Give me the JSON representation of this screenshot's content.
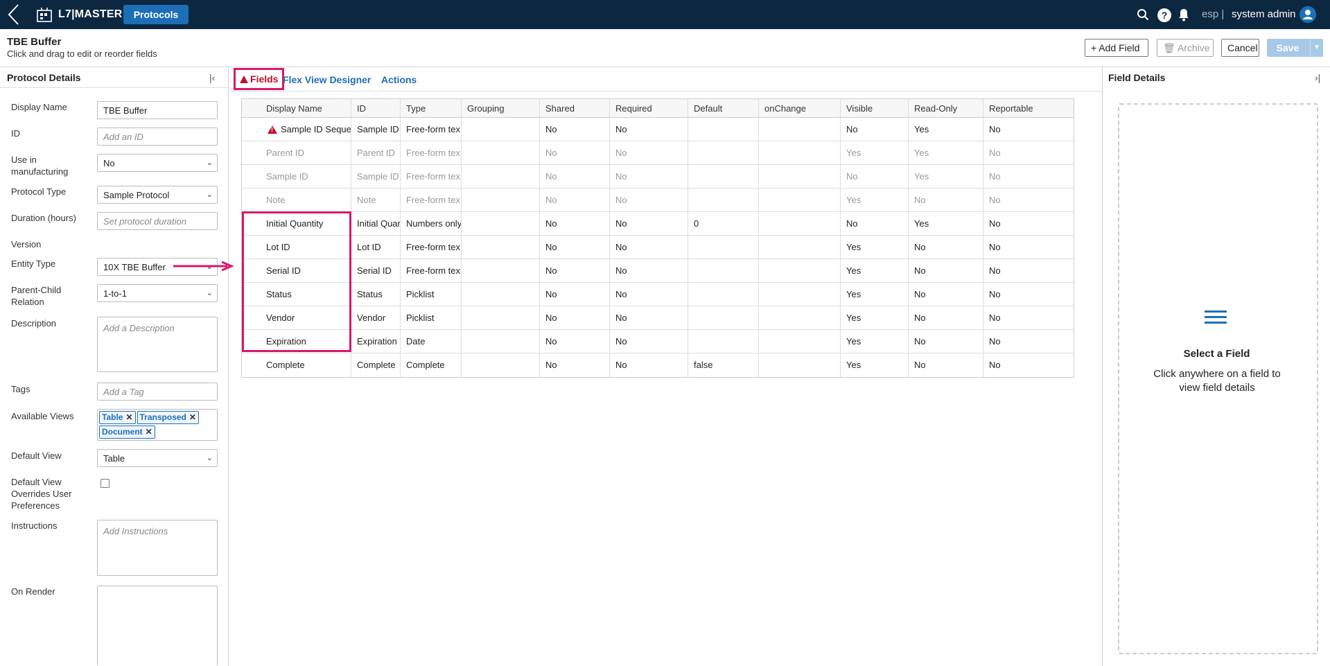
{
  "topbar": {
    "brand": "L7|MASTER",
    "nav_tab": "Protocols",
    "help_glyph": "?",
    "lang": "esp |",
    "user": "system admin",
    "icons": [
      "back-chevron-icon",
      "app-logo-icon",
      "search-icon",
      "help-icon",
      "bell-icon",
      "user-avatar-icon"
    ]
  },
  "header": {
    "title": "TBE Buffer",
    "subtitle": "Click and drag to edit or reorder fields",
    "add_field": "+  Add Field",
    "archive": "Archive",
    "cancel": "Cancel",
    "save": "Save"
  },
  "left_panel": {
    "title": "Protocol Details",
    "fields": {
      "display_name": {
        "label": "Display Name",
        "value": "TBE Buffer"
      },
      "id": {
        "label": "ID",
        "placeholder": "Add an ID"
      },
      "use_in_manufacturing": {
        "label": "Use in manufacturing",
        "value": "No"
      },
      "protocol_type": {
        "label": "Protocol Type",
        "value": "Sample Protocol"
      },
      "duration": {
        "label": "Duration (hours)",
        "placeholder": "Set protocol duration"
      },
      "version": {
        "label": "Version"
      },
      "entity_type": {
        "label": "Entity Type",
        "value": "10X TBE Buffer"
      },
      "parent_child": {
        "label": "Parent-Child Relation",
        "value": "1-to-1"
      },
      "description": {
        "label": "Description",
        "placeholder": "Add a Description"
      },
      "tags": {
        "label": "Tags",
        "placeholder": "Add a Tag"
      },
      "available_views": {
        "label": "Available Views",
        "chips": [
          "Table",
          "Transposed",
          "Document"
        ]
      },
      "default_view": {
        "label": "Default View",
        "value": "Table"
      },
      "default_view_overrides": {
        "label": "Default View Overrides User Preferences",
        "checked": false
      },
      "instructions": {
        "label": "Instructions",
        "placeholder": "Add Instructions"
      },
      "on_render": {
        "label": "On Render"
      }
    }
  },
  "center": {
    "tabs": [
      "Fields",
      "Flex View Designer",
      "Actions"
    ],
    "active_tab": "Fields",
    "columns": [
      "Display Name",
      "ID",
      "Type",
      "Grouping",
      "Shared",
      "Required",
      "Default",
      "onChange",
      "Visible",
      "Read-Only",
      "Reportable"
    ],
    "rows": [
      {
        "cells": [
          "Sample ID Sequen",
          "Sample ID",
          "Free-form tex",
          "",
          "No",
          "No",
          "",
          "",
          "No",
          "Yes",
          "No"
        ],
        "warning": true
      },
      {
        "cells": [
          "Parent ID",
          "Parent ID",
          "Free-form tex",
          "",
          "No",
          "No",
          "",
          "",
          "Yes",
          "Yes",
          "No"
        ],
        "muted": true
      },
      {
        "cells": [
          "Sample ID",
          "Sample ID",
          "Free-form tex",
          "",
          "No",
          "No",
          "",
          "",
          "No",
          "Yes",
          "No"
        ],
        "muted": true
      },
      {
        "cells": [
          "Note",
          "Note",
          "Free-form tex",
          "",
          "No",
          "No",
          "",
          "",
          "Yes",
          "No",
          "No"
        ],
        "muted": true
      },
      {
        "cells": [
          "Initial Quantity",
          "Initial Quar",
          "Numbers only",
          "",
          "No",
          "No",
          "0",
          "",
          "No",
          "Yes",
          "No"
        ]
      },
      {
        "cells": [
          "Lot ID",
          "Lot ID",
          "Free-form tex",
          "",
          "No",
          "No",
          "",
          "",
          "Yes",
          "No",
          "No"
        ]
      },
      {
        "cells": [
          "Serial ID",
          "Serial ID",
          "Free-form tex",
          "",
          "No",
          "No",
          "",
          "",
          "Yes",
          "No",
          "No"
        ]
      },
      {
        "cells": [
          "Status",
          "Status",
          "Picklist",
          "",
          "No",
          "No",
          "",
          "",
          "Yes",
          "No",
          "No"
        ]
      },
      {
        "cells": [
          "Vendor",
          "Vendor",
          "Picklist",
          "",
          "No",
          "No",
          "",
          "",
          "Yes",
          "No",
          "No"
        ]
      },
      {
        "cells": [
          "Expiration",
          "Expiration",
          "Date",
          "",
          "No",
          "No",
          "",
          "",
          "Yes",
          "No",
          "No"
        ]
      },
      {
        "cells": [
          "Complete",
          "Complete",
          "Complete",
          "",
          "No",
          "No",
          "false",
          "",
          "Yes",
          "No",
          "No"
        ]
      }
    ],
    "highlight_color": "#d6186c"
  },
  "right_panel": {
    "title": "Field Details",
    "empty_title": "Select a Field",
    "empty_desc": "Click anywhere on a field to view field details",
    "icon": "list-icon"
  },
  "colors": {
    "topbar": "#0c2740",
    "accent": "#1c6fb6",
    "warning": "#c0102a",
    "highlight": "#d6186c"
  }
}
